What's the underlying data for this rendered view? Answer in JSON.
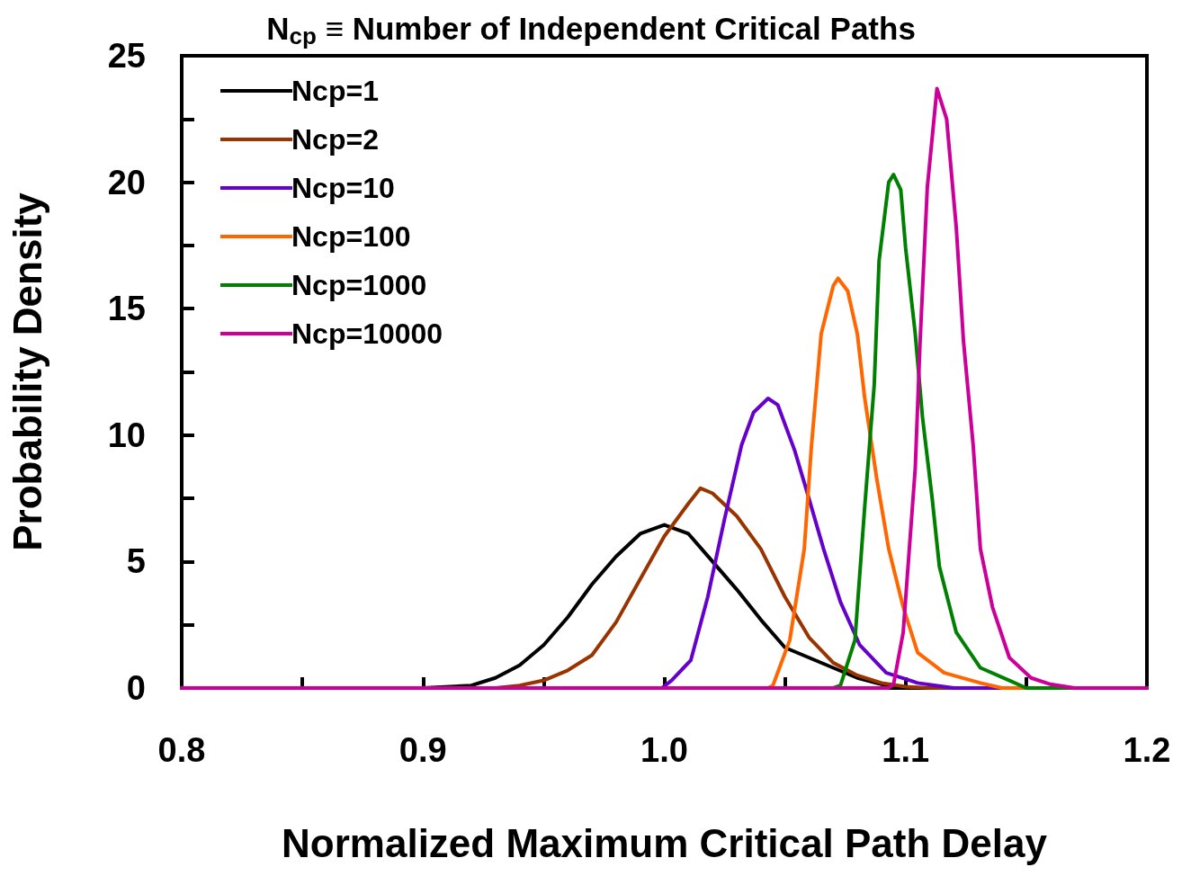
{
  "chart_data": {
    "type": "line",
    "title": "N$_{cp}$ ≡ Number of Independent Critical Paths",
    "xlabel": "Normalized Maximum Critical Path Delay",
    "ylabel": "Probability Density",
    "xlim": [
      0.8,
      1.2
    ],
    "xticks": [
      {
        "value": 0.8,
        "label": "0.8"
      },
      {
        "value": 0.85,
        "label": null
      },
      {
        "value": 0.9,
        "label": "0.9"
      },
      {
        "value": 0.95,
        "label": null
      },
      {
        "value": 1.0,
        "label": "1.0"
      },
      {
        "value": 1.05,
        "label": null
      },
      {
        "value": 1.1,
        "label": "1.1"
      },
      {
        "value": 1.15,
        "label": null
      },
      {
        "value": 1.2,
        "label": "1.2"
      }
    ],
    "ylim": [
      0,
      25
    ],
    "yticks": [
      0,
      {
        "value": 2.5,
        "label": null
      },
      5,
      {
        "value": 7.5,
        "label": null
      },
      10,
      {
        "value": 12.5,
        "label": null
      },
      15,
      {
        "value": 17.5,
        "label": null
      },
      20,
      {
        "value": 22.5,
        "label": null
      },
      25
    ],
    "grid": false,
    "legend": "top left",
    "marker": "none",
    "line_style": "solid",
    "series": [
      {
        "name": "Ncp=1",
        "color": "#000000",
        "x": [
          0.8,
          0.9,
          0.92,
          0.93,
          0.94,
          0.95,
          0.96,
          0.97,
          0.98,
          0.99,
          1.0,
          1.01,
          1.02,
          1.03,
          1.04,
          1.05,
          1.06,
          1.07,
          1.08,
          1.09,
          1.1,
          1.2
        ],
        "values": [
          0,
          0,
          0.1,
          0.4,
          0.9,
          1.7,
          2.8,
          4.1,
          5.2,
          6.1,
          6.45,
          6.1,
          5.0,
          3.9,
          2.7,
          1.6,
          1.2,
          0.8,
          0.4,
          0.15,
          0,
          0
        ]
      },
      {
        "name": "Ncp=2",
        "color": "#993300",
        "x": [
          0.8,
          0.93,
          0.94,
          0.95,
          0.96,
          0.97,
          0.98,
          0.99,
          1.0,
          1.01,
          1.015,
          1.02,
          1.03,
          1.04,
          1.05,
          1.06,
          1.07,
          1.08,
          1.09,
          1.1,
          1.11,
          1.2
        ],
        "values": [
          0,
          0,
          0.1,
          0.3,
          0.7,
          1.3,
          2.6,
          4.3,
          6.0,
          7.3,
          7.9,
          7.7,
          6.8,
          5.5,
          3.6,
          2.0,
          1.0,
          0.5,
          0.2,
          0.05,
          0,
          0
        ]
      },
      {
        "name": "Ncp=10",
        "color": "#6600cc",
        "x": [
          0.8,
          0.999,
          1.003,
          1.011,
          1.018,
          1.025,
          1.032,
          1.037,
          1.043,
          1.047,
          1.054,
          1.059,
          1.066,
          1.073,
          1.081,
          1.092,
          1.105,
          1.12,
          1.2
        ],
        "values": [
          0,
          0,
          0.3,
          1.1,
          3.6,
          6.7,
          9.6,
          10.9,
          11.45,
          11.2,
          9.4,
          7.8,
          5.5,
          3.4,
          1.7,
          0.6,
          0.2,
          0,
          0
        ]
      },
      {
        "name": "Ncp=100",
        "color": "#ff6600",
        "x": [
          0.8,
          1.043,
          1.045,
          1.052,
          1.058,
          1.061,
          1.065,
          1.07,
          1.072,
          1.076,
          1.08,
          1.083,
          1.088,
          1.093,
          1.099,
          1.105,
          1.116,
          1.131,
          1.14,
          1.2
        ],
        "values": [
          0,
          0,
          0.1,
          1.9,
          5.5,
          9.6,
          14.0,
          15.9,
          16.2,
          15.7,
          14.0,
          11.5,
          8.3,
          5.5,
          3.2,
          1.4,
          0.6,
          0.2,
          0,
          0
        ]
      },
      {
        "name": "Ncp=1000",
        "color": "#008000",
        "x": [
          0.8,
          1.07,
          1.073,
          1.079,
          1.083,
          1.087,
          1.089,
          1.093,
          1.095,
          1.098,
          1.1,
          1.104,
          1.107,
          1.111,
          1.114,
          1.121,
          1.131,
          1.143,
          1.15,
          1.2
        ],
        "values": [
          0,
          0,
          0.1,
          1.9,
          7.1,
          12.0,
          16.9,
          20.0,
          20.3,
          19.7,
          17.4,
          14.0,
          10.7,
          7.5,
          4.8,
          2.2,
          0.8,
          0.3,
          0,
          0
        ]
      },
      {
        "name": "Ncp=10000",
        "color": "#cc0099",
        "x": [
          0.8,
          1.093,
          1.095,
          1.099,
          1.104,
          1.106,
          1.109,
          1.113,
          1.117,
          1.121,
          1.124,
          1.128,
          1.131,
          1.136,
          1.143,
          1.152,
          1.16,
          1.17,
          1.2
        ],
        "values": [
          0,
          0,
          0.15,
          2.2,
          8.7,
          13.7,
          19.8,
          23.7,
          22.5,
          18.2,
          13.7,
          9.6,
          5.5,
          3.2,
          1.2,
          0.4,
          0.15,
          0,
          0
        ]
      }
    ]
  }
}
